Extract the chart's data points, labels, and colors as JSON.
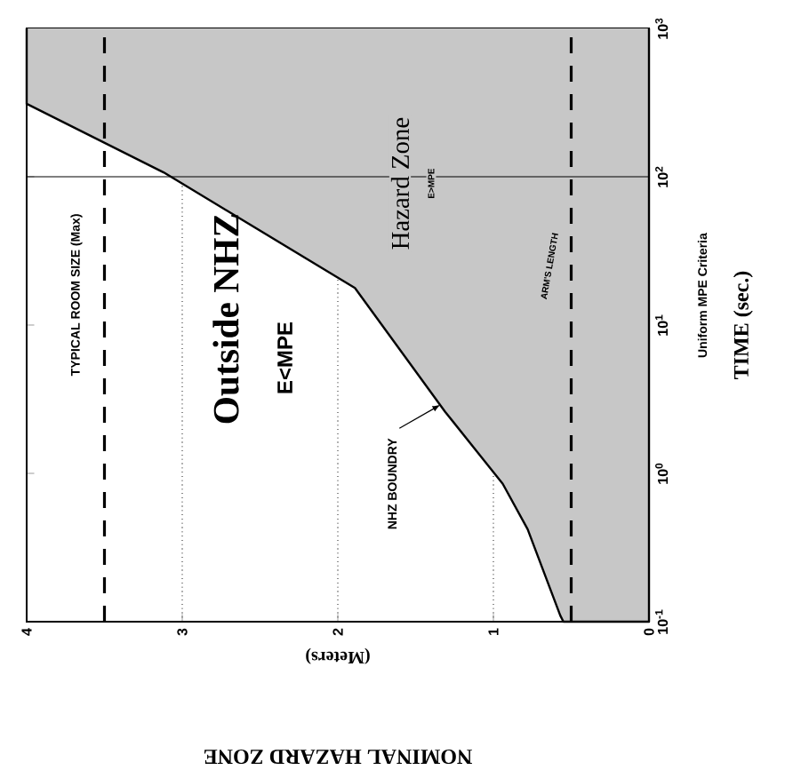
{
  "chart_data": {
    "type": "area",
    "title": "NOMINAL HAZARD ZONE",
    "xlabel": "(Meters)",
    "ylabel": "TIME (sec.)",
    "x": [
      0,
      0,
      0.55,
      0.57,
      0.78,
      0.94,
      1.31,
      1.89,
      3.12,
      4,
      4
    ],
    "series": [
      {
        "color": "#000000",
        "values": [
          1000,
          0.1,
          0.1,
          0.11,
          0.42,
          0.85,
          2.6,
          17.8,
          107,
          310,
          1000
        ]
      }
    ],
    "log": "y",
    "xlim": [
      4,
      0
    ],
    "xticks": [
      0,
      1,
      2,
      3,
      4
    ],
    "ylim": [
      0.1,
      1000
    ],
    "yticks": [
      {
        "value": 0.1,
        "label": "10$^{-1}$"
      },
      {
        "value": 1,
        "label": "10$^{0}$"
      },
      {
        "value": 10,
        "label": "10$^{1}$"
      },
      {
        "value": 100,
        "label": "10$^{2}$"
      },
      {
        "value": 1000,
        "label": "10$^{3}$"
      }
    ],
    "grid": "x",
    "marker": "none",
    "line_style": "solid",
    "ref_lines": [
      {
        "axis": "x",
        "value": 3.5,
        "label": "TYPICAL ROOM SIZE (Max)",
        "line_style": "dashed"
      },
      {
        "axis": "x",
        "value": 0.5,
        "label": "ARM'S LENGTH",
        "line_style": "dashed"
      },
      {
        "axis": "y",
        "value": 100,
        "line_style": "solid"
      }
    ],
    "annotations": [
      "Outside NHZ",
      "E<MPE",
      "Hazard Zone",
      "E>MPE",
      {
        "text": "NHZ BOUNDRY",
        "x": 1.34,
        "y": 2.9
      },
      "Uniform MPE Criteria"
    ]
  }
}
